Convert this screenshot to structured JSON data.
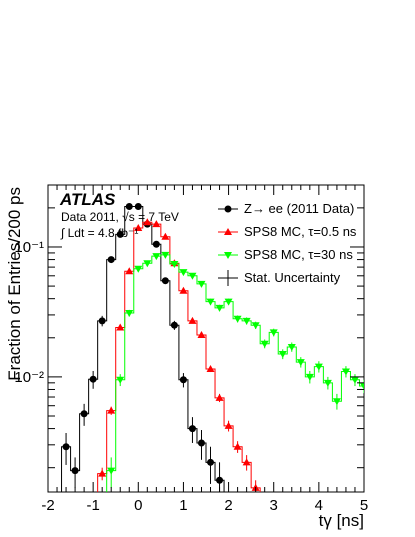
{
  "chart_data": {
    "type": "histogram",
    "experiment_label": "ATLAS",
    "info_lines": [
      "Data 2011, √s = 7 TeV",
      "∫ Ldt = 4.8 fb⁻¹"
    ],
    "xlabel": "tγ [ns]",
    "ylabel": "Fraction of Entries/200 ps",
    "x_ticks": [
      "-2",
      "-1",
      "0",
      "1",
      "2",
      "3",
      "4",
      "5"
    ],
    "y_ticks": [
      "10⁻¹",
      "10⁻²"
    ],
    "xlim": [
      -2,
      5
    ],
    "ylim": [
      0.0013,
      0.3
    ],
    "y_scale": "log",
    "bin_width_ns": 0.2,
    "series": [
      {
        "name": "Z→ ee (2011 Data)",
        "color": "#000000",
        "marker": "circle",
        "x": [
          -1.6,
          -1.4,
          -1.2,
          -1.0,
          -0.8,
          -0.6,
          -0.4,
          -0.2,
          0.0,
          0.2,
          0.4,
          0.6,
          0.8,
          1.0,
          1.2,
          1.4,
          1.6,
          1.8
        ],
        "y": [
          0.0029,
          0.0019,
          0.0052,
          0.0096,
          0.027,
          0.08,
          0.125,
          0.205,
          0.205,
          0.15,
          0.105,
          0.055,
          0.025,
          0.0095,
          0.004,
          0.0031,
          0.0022,
          0.0016
        ],
        "err": [
          0.0008,
          0.0005,
          0.001,
          0.0015,
          0.0025,
          0.004,
          0.005,
          0.006,
          0.006,
          0.005,
          0.004,
          0.003,
          0.002,
          0.0012,
          0.0009,
          0.0008,
          0.0007,
          0.0006
        ]
      },
      {
        "name": "SPS8 MC, τ=0.5 ns",
        "color": "#ff0000",
        "marker": "triangle-up",
        "x": [
          -0.8,
          -0.6,
          -0.4,
          -0.2,
          0.0,
          0.2,
          0.4,
          0.6,
          0.8,
          1.0,
          1.2,
          1.4,
          1.6,
          1.8,
          2.0,
          2.2,
          2.4,
          2.6
        ],
        "y": [
          0.0018,
          0.0055,
          0.024,
          0.065,
          0.14,
          0.155,
          0.15,
          0.12,
          0.075,
          0.046,
          0.027,
          0.021,
          0.0115,
          0.0069,
          0.0042,
          0.0029,
          0.0022,
          0.0014
        ],
        "err": [
          0.0002,
          0.0004,
          0.0008,
          0.0014,
          0.002,
          0.002,
          0.002,
          0.0018,
          0.0015,
          0.0011,
          0.0009,
          0.0008,
          0.0006,
          0.0005,
          0.0004,
          0.0003,
          0.0003,
          0.0002
        ]
      },
      {
        "name": "SPS8 MC, τ=30 ns",
        "color": "#00ff00",
        "marker": "triangle-down",
        "x": [
          -0.6,
          -0.4,
          -0.2,
          0.0,
          0.2,
          0.4,
          0.6,
          0.8,
          1.0,
          1.2,
          1.4,
          1.6,
          1.8,
          2.0,
          2.2,
          2.4,
          2.6,
          2.8,
          3.0,
          3.2,
          3.4,
          3.6,
          3.8,
          4.0,
          4.2,
          4.4,
          4.6,
          4.8,
          5.0
        ],
        "y": [
          0.0019,
          0.0095,
          0.031,
          0.068,
          0.075,
          0.085,
          0.087,
          0.074,
          0.064,
          0.06,
          0.052,
          0.038,
          0.034,
          0.038,
          0.028,
          0.027,
          0.025,
          0.018,
          0.022,
          0.015,
          0.017,
          0.013,
          0.01,
          0.012,
          0.009,
          0.0065,
          0.011,
          0.0095,
          0.0085
        ],
        "err": [
          0.0005,
          0.001,
          0.0018,
          0.0028,
          0.003,
          0.003,
          0.003,
          0.0028,
          0.0026,
          0.0025,
          0.0023,
          0.002,
          0.0019,
          0.002,
          0.0017,
          0.0017,
          0.0016,
          0.0014,
          0.0015,
          0.0013,
          0.0014,
          0.0012,
          0.0011,
          0.0012,
          0.001,
          0.0009,
          0.0011,
          0.001,
          0.001
        ]
      }
    ],
    "legend": {
      "placement": "top-right",
      "extra_entry": "Stat. Uncertainty"
    }
  }
}
